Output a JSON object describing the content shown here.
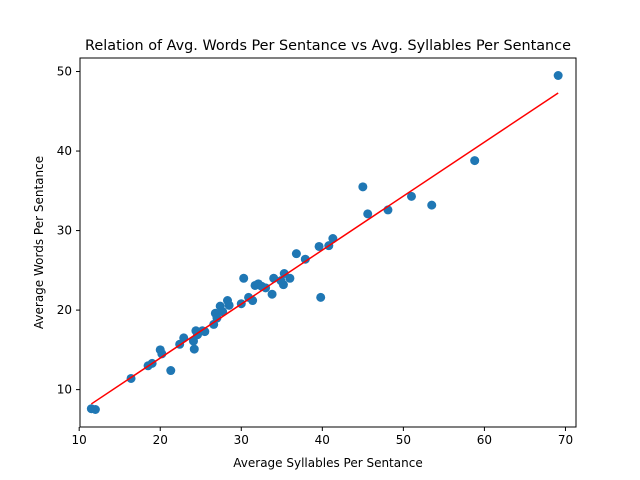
{
  "chart_data": {
    "type": "scatter",
    "title": "Relation of Avg. Words Per Sentance vs Avg. Syllables Per Sentance",
    "xlabel": "Average Syllables Per Sentance",
    "ylabel": "Average Words Per Sentance",
    "xlim": [
      10.1,
      71.3
    ],
    "ylim": [
      5.3,
      51.7
    ],
    "xticks": [
      10,
      20,
      30,
      40,
      50,
      60,
      70
    ],
    "yticks": [
      10,
      20,
      30,
      40,
      50
    ],
    "grid": false,
    "legend": "none",
    "colors": {
      "points": "#1f77b4",
      "fit_line": "#ff0000"
    },
    "series": [
      {
        "type": "scatter",
        "points": [
          [
            11.5,
            7.6
          ],
          [
            12.0,
            7.5
          ],
          [
            16.4,
            11.4
          ],
          [
            18.5,
            13.0
          ],
          [
            19.0,
            13.3
          ],
          [
            20.0,
            15.0
          ],
          [
            20.2,
            14.5
          ],
          [
            21.3,
            12.4
          ],
          [
            22.4,
            15.7
          ],
          [
            22.9,
            16.5
          ],
          [
            24.1,
            16.1
          ],
          [
            24.2,
            15.1
          ],
          [
            24.4,
            17.4
          ],
          [
            24.6,
            16.9
          ],
          [
            25.2,
            17.4
          ],
          [
            25.5,
            17.3
          ],
          [
            26.6,
            18.2
          ],
          [
            26.8,
            19.6
          ],
          [
            27.0,
            19.0
          ],
          [
            27.4,
            20.5
          ],
          [
            27.7,
            19.8
          ],
          [
            28.3,
            21.2
          ],
          [
            28.5,
            20.6
          ],
          [
            30.0,
            20.8
          ],
          [
            30.3,
            24.0
          ],
          [
            30.9,
            21.6
          ],
          [
            31.4,
            21.2
          ],
          [
            31.7,
            23.1
          ],
          [
            32.1,
            23.3
          ],
          [
            32.5,
            23.0
          ],
          [
            33.0,
            22.8
          ],
          [
            33.8,
            22.0
          ],
          [
            34.0,
            24.0
          ],
          [
            34.9,
            23.7
          ],
          [
            35.2,
            23.2
          ],
          [
            35.3,
            24.6
          ],
          [
            36.0,
            24.0
          ],
          [
            36.8,
            27.1
          ],
          [
            37.9,
            26.4
          ],
          [
            39.6,
            28.0
          ],
          [
            39.8,
            21.6
          ],
          [
            40.8,
            28.1
          ],
          [
            41.3,
            29.0
          ],
          [
            45.0,
            35.5
          ],
          [
            45.6,
            32.1
          ],
          [
            48.1,
            32.6
          ],
          [
            51.0,
            34.3
          ],
          [
            53.5,
            33.2
          ],
          [
            58.8,
            38.8
          ],
          [
            69.1,
            49.5
          ]
        ]
      },
      {
        "type": "line",
        "points": [
          [
            11.5,
            8.2
          ],
          [
            69.1,
            47.3
          ]
        ]
      }
    ]
  }
}
